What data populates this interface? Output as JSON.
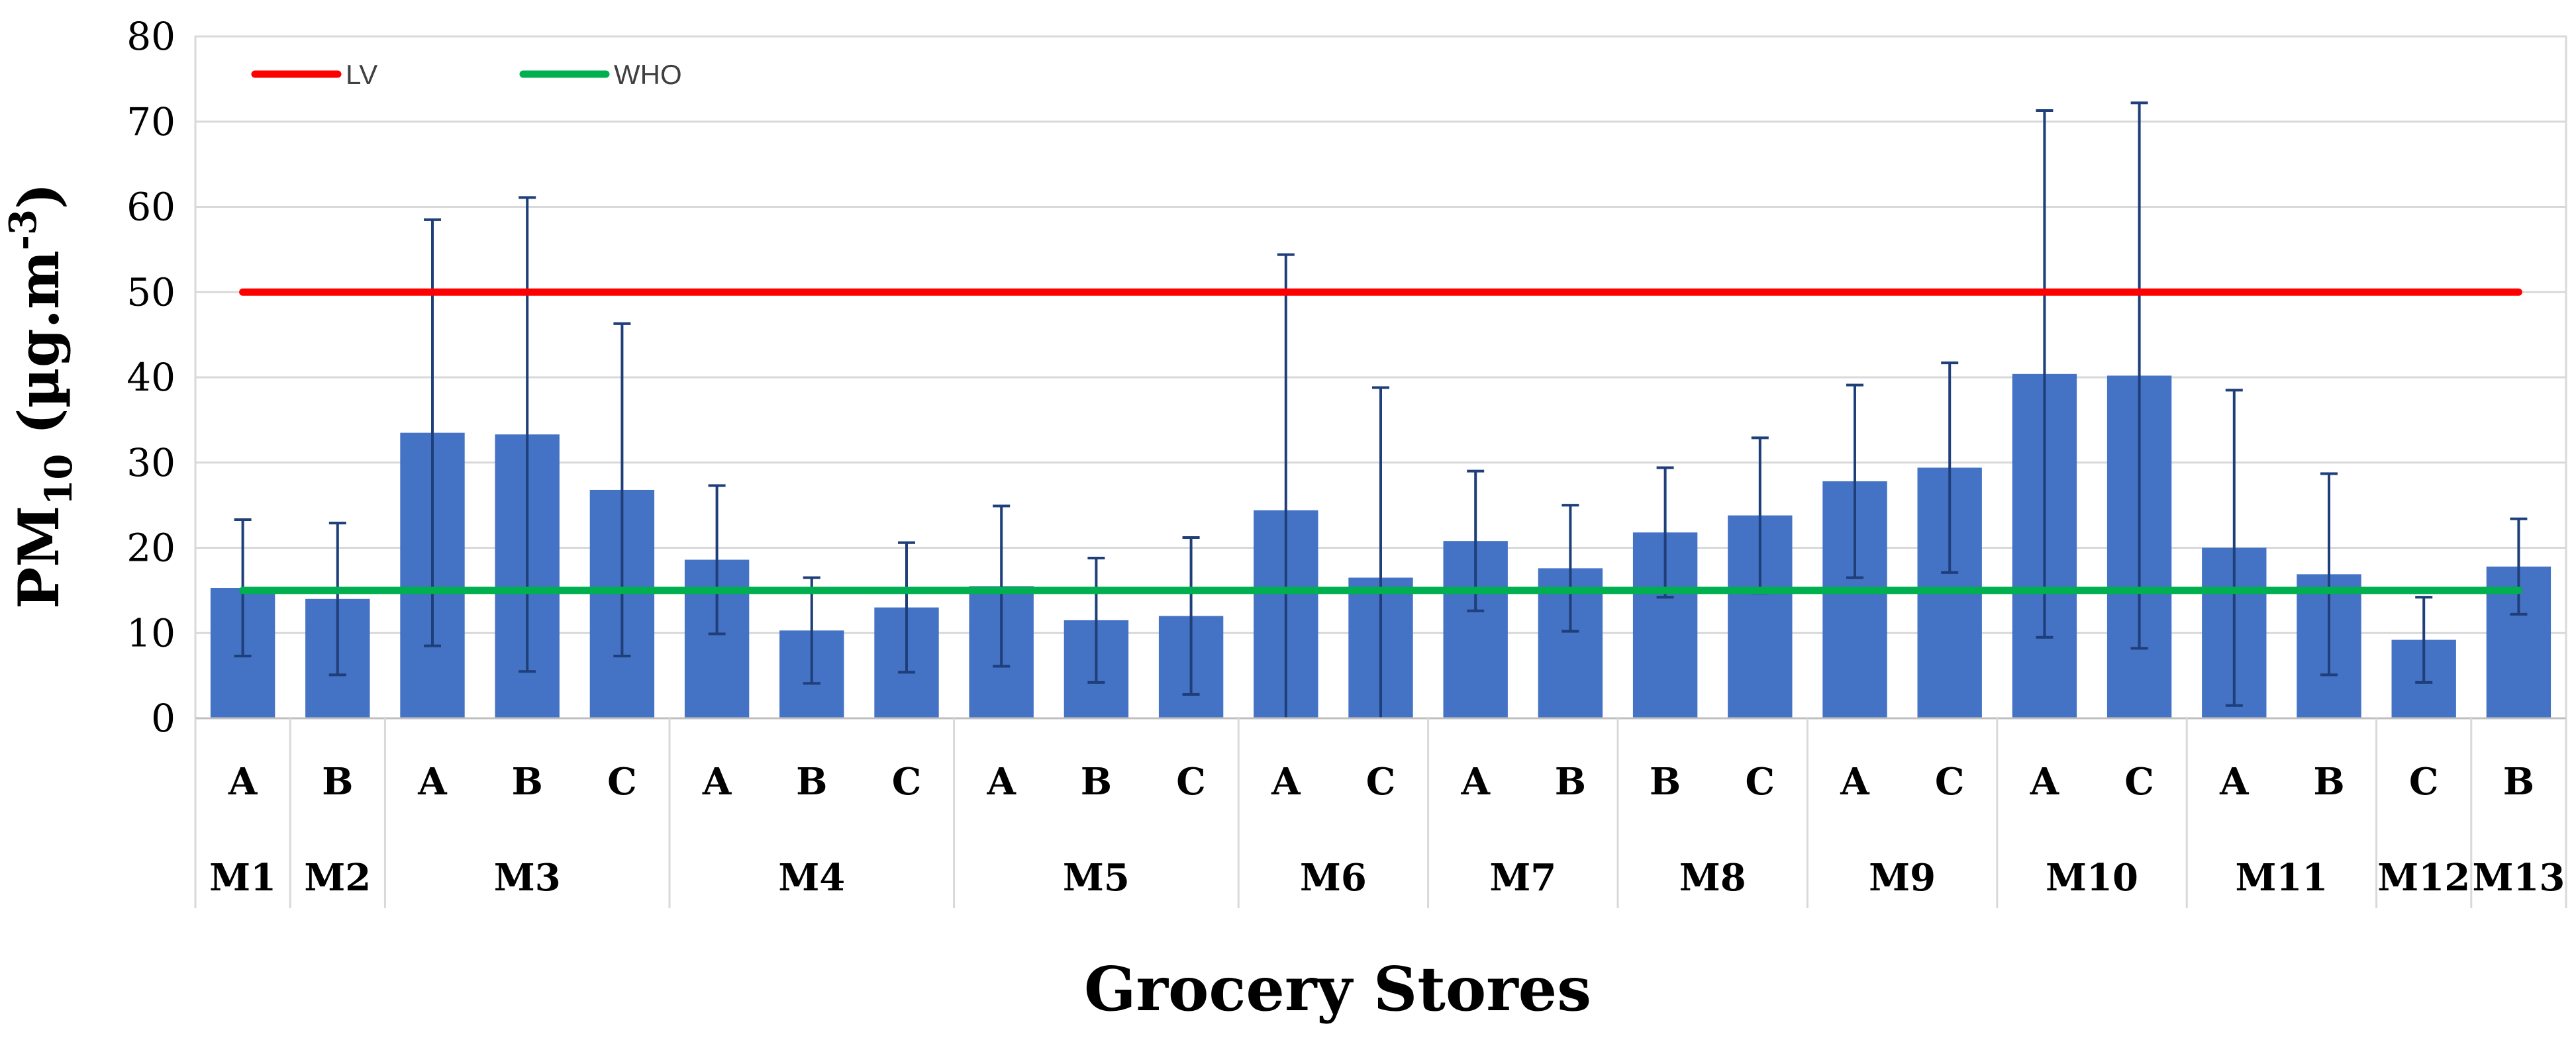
{
  "chart_data": {
    "type": "bar",
    "title": "",
    "xlabel": "Grocery Stores",
    "ylabel": {
      "main": "PM",
      "sub": "10",
      "units_prefix": " (µg.m",
      "units_sup": "-3",
      "units_suffix": ")"
    },
    "ylim": [
      0,
      80
    ],
    "yticks": [
      0,
      10,
      20,
      30,
      40,
      50,
      60,
      70,
      80
    ],
    "grid": true,
    "legend_position": "top-left",
    "bar_color": "#4472C4",
    "error_color": "#1F3F7A",
    "categories": [
      {
        "sub": "A",
        "group": "M1"
      },
      {
        "sub": "B",
        "group": "M2"
      },
      {
        "sub": "A",
        "group": "M3"
      },
      {
        "sub": "B",
        "group": "M3"
      },
      {
        "sub": "C",
        "group": "M3"
      },
      {
        "sub": "A",
        "group": "M4"
      },
      {
        "sub": "B",
        "group": "M4"
      },
      {
        "sub": "C",
        "group": "M4"
      },
      {
        "sub": "A",
        "group": "M5"
      },
      {
        "sub": "B",
        "group": "M5"
      },
      {
        "sub": "C",
        "group": "M5"
      },
      {
        "sub": "A",
        "group": "M6"
      },
      {
        "sub": "C",
        "group": "M6"
      },
      {
        "sub": "A",
        "group": "M7"
      },
      {
        "sub": "B",
        "group": "M7"
      },
      {
        "sub": "B",
        "group": "M8"
      },
      {
        "sub": "C",
        "group": "M8"
      },
      {
        "sub": "A",
        "group": "M9"
      },
      {
        "sub": "C",
        "group": "M9"
      },
      {
        "sub": "A",
        "group": "M10"
      },
      {
        "sub": "C",
        "group": "M10"
      },
      {
        "sub": "A",
        "group": "M11"
      },
      {
        "sub": "B",
        "group": "M11"
      },
      {
        "sub": "C",
        "group": "M12"
      },
      {
        "sub": "B",
        "group": "M13"
      }
    ],
    "groups": [
      "M1",
      "M2",
      "M3",
      "M4",
      "M5",
      "M6",
      "M7",
      "M8",
      "M9",
      "M10",
      "M11",
      "M12",
      "M13"
    ],
    "series": [
      {
        "name": "PM10",
        "values": [
          15.3,
          14.0,
          33.5,
          33.3,
          26.8,
          18.6,
          10.3,
          13.0,
          15.5,
          11.5,
          12.0,
          24.4,
          16.5,
          20.8,
          17.6,
          21.8,
          23.8,
          27.8,
          29.4,
          40.4,
          40.2,
          20.0,
          16.9,
          9.2,
          17.8
        ],
        "error": [
          8.0,
          8.9,
          25.0,
          27.8,
          19.5,
          8.7,
          6.2,
          7.6,
          9.4,
          7.3,
          9.2,
          30.0,
          22.3,
          8.2,
          7.4,
          7.6,
          9.1,
          11.3,
          12.3,
          30.9,
          32.0,
          18.5,
          11.8,
          5.0,
          5.6
        ]
      }
    ],
    "reference_lines": [
      {
        "name": "LV",
        "value": 50,
        "color": "#FF0000"
      },
      {
        "name": "WHO",
        "value": 15,
        "color": "#00B050"
      }
    ]
  }
}
